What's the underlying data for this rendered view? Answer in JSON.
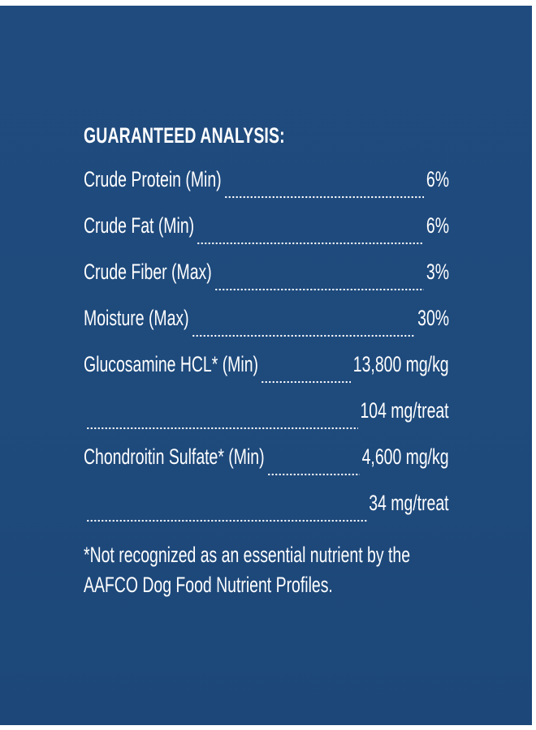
{
  "panel": {
    "background_color": "#1f4b7d",
    "text_color": "#ffffff"
  },
  "analysis": {
    "heading": "GUARANTEED ANALYSIS:",
    "rows": [
      {
        "label": "Crude Protein (Min)",
        "value": "6%"
      },
      {
        "label": "Crude Fat (Min)",
        "value": "6%"
      },
      {
        "label": "Crude Fiber (Max)",
        "value": "3%"
      },
      {
        "label": "Moisture (Max)",
        "value": "30%"
      },
      {
        "label": "Glucosamine HCL* (Min)",
        "value": "13,800 mg/kg"
      },
      {
        "label": "",
        "value": "104 mg/treat"
      },
      {
        "label": "Chondroitin Sulfate* (Min)",
        "value": "4,600 mg/kg"
      },
      {
        "label": "",
        "value": "34 mg/treat"
      }
    ]
  },
  "footnote": "*Not recognized as an essential nutrient by the AAFCO Dog Food Nutrient Profiles."
}
